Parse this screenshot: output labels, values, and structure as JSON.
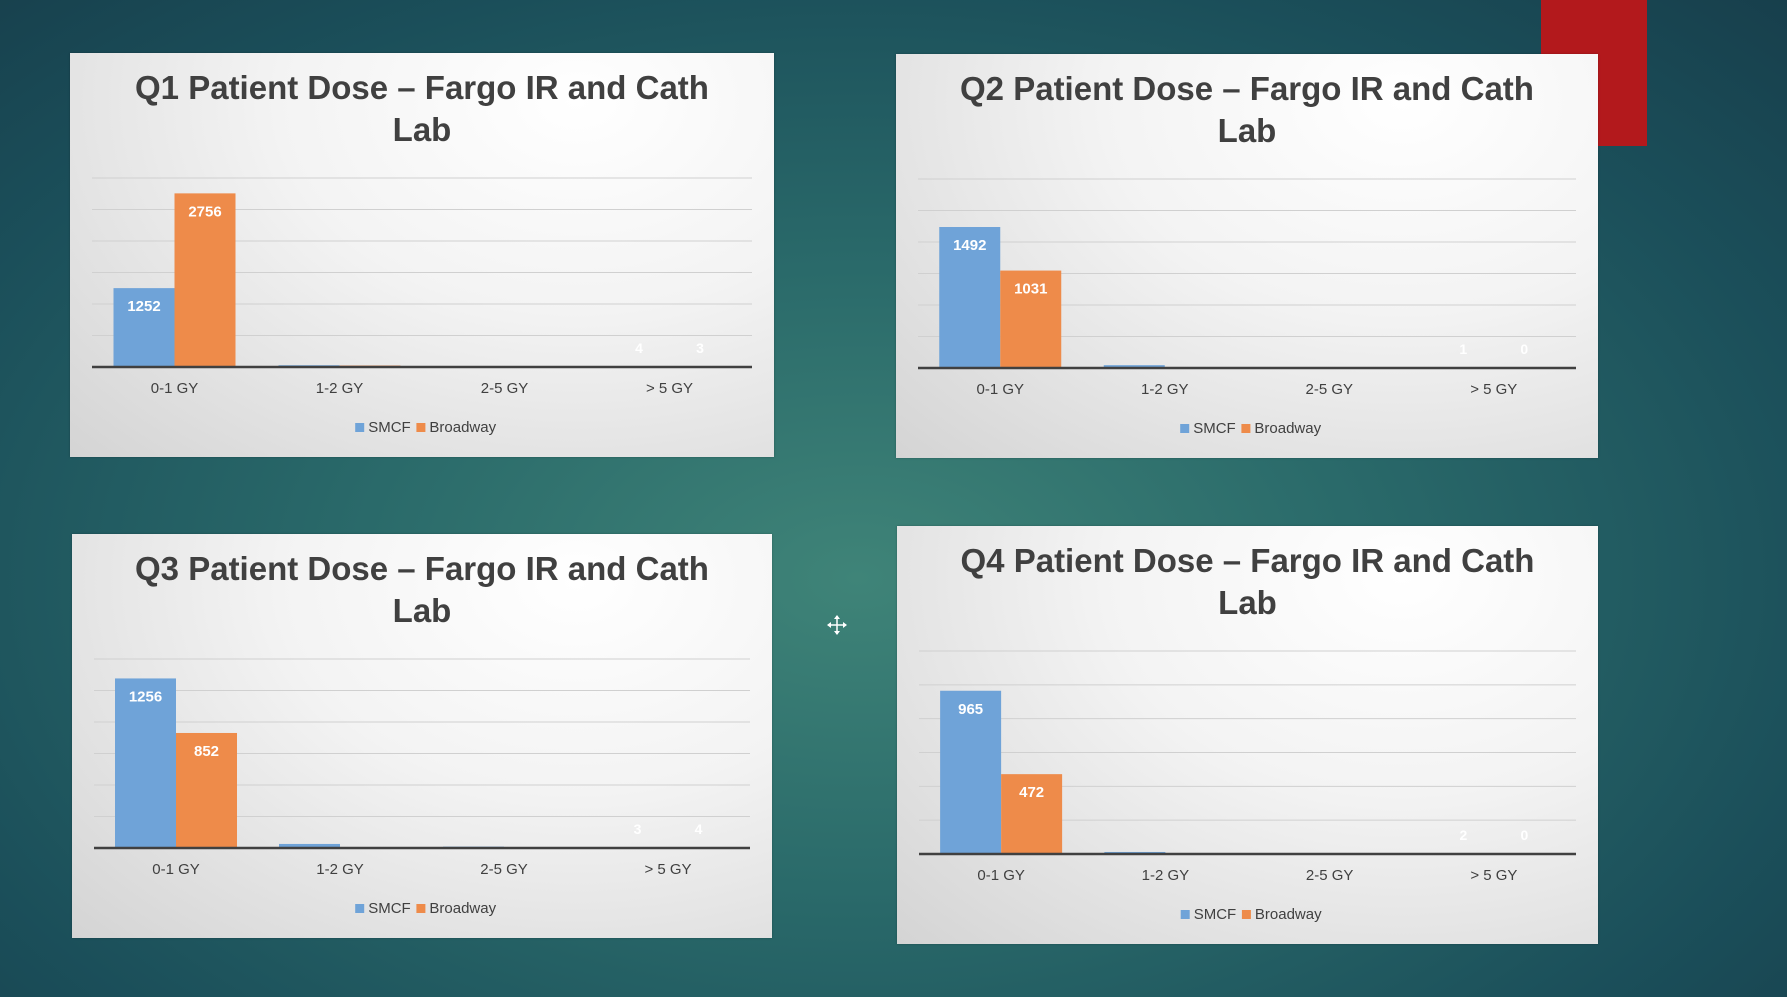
{
  "colors": {
    "smcf": "#6fa3d8",
    "broadway": "#ee8b4a",
    "accent": "#b3191c"
  },
  "chart_data": [
    {
      "type": "bar",
      "title_lines": [
        "Q1 Patient Dose – Fargo IR and Cath",
        "Lab"
      ],
      "categories": [
        "0-1 GY",
        "1-2 GY",
        "2-5 GY",
        "> 5 GY"
      ],
      "series": [
        {
          "name": "SMCF",
          "values": [
            1252,
            28,
            6,
            4
          ],
          "labels": [
            "1252",
            "",
            "",
            "4"
          ]
        },
        {
          "name": "Broadway",
          "values": [
            2756,
            24,
            5,
            3
          ],
          "labels": [
            "2756",
            "",
            "",
            "3"
          ]
        }
      ],
      "ylim": [
        0,
        3000
      ],
      "grid": true,
      "legend": "bottom"
    },
    {
      "type": "bar",
      "title_lines": [
        "Q2 Patient Dose – Fargo IR and Cath",
        "Lab"
      ],
      "categories": [
        "0-1 GY",
        "1-2 GY",
        "2-5 GY",
        "> 5 GY"
      ],
      "series": [
        {
          "name": "SMCF",
          "values": [
            1492,
            30,
            10,
            1
          ],
          "labels": [
            "1492",
            "",
            "",
            "1"
          ]
        },
        {
          "name": "Broadway",
          "values": [
            1031,
            0,
            0,
            0
          ],
          "labels": [
            "1031",
            "",
            "",
            "0"
          ]
        }
      ],
      "ylim": [
        0,
        2000
      ],
      "grid": true,
      "legend": "bottom"
    },
    {
      "type": "bar",
      "title_lines": [
        "Q3 Patient Dose – Fargo IR and Cath",
        "Lab"
      ],
      "categories": [
        "0-1 GY",
        "1-2 GY",
        "2-5 GY",
        "> 5 GY"
      ],
      "series": [
        {
          "name": "SMCF",
          "values": [
            1256,
            30,
            10,
            3
          ],
          "labels": [
            "1256",
            "",
            "",
            "3"
          ]
        },
        {
          "name": "Broadway",
          "values": [
            852,
            0,
            5,
            4
          ],
          "labels": [
            "852",
            "",
            "",
            "4"
          ]
        }
      ],
      "ylim": [
        0,
        1400
      ],
      "grid": true,
      "legend": "bottom"
    },
    {
      "type": "bar",
      "title_lines": [
        "Q4 Patient Dose – Fargo IR and Cath",
        "Lab"
      ],
      "categories": [
        "0-1 GY",
        "1-2 GY",
        "2-5 GY",
        "> 5 GY"
      ],
      "series": [
        {
          "name": "SMCF",
          "values": [
            965,
            12,
            4,
            2
          ],
          "labels": [
            "965",
            "",
            "",
            "2"
          ]
        },
        {
          "name": "Broadway",
          "values": [
            472,
            3,
            2,
            0
          ],
          "labels": [
            "472",
            "",
            "",
            "0"
          ]
        }
      ],
      "ylim": [
        0,
        1200
      ],
      "grid": true,
      "legend": "bottom"
    }
  ]
}
